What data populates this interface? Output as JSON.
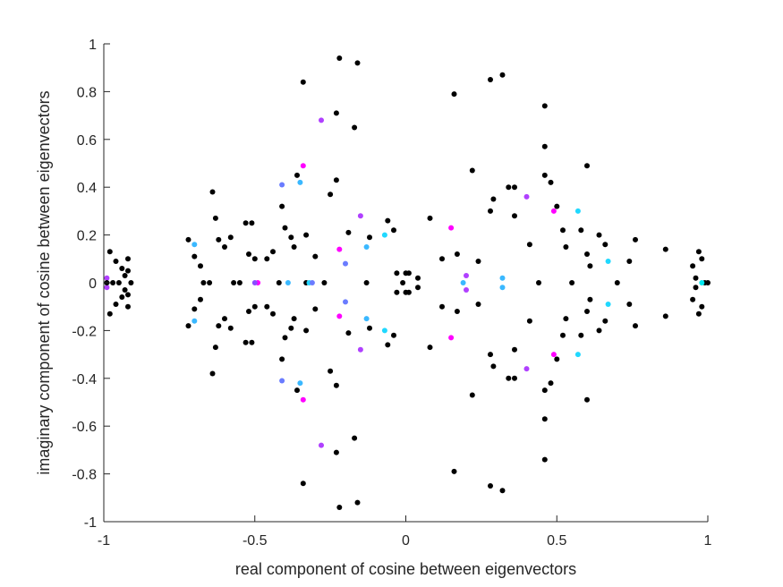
{
  "chart_data": {
    "type": "scatter",
    "title": "",
    "xlabel": "real component of cosine between eigenvectors",
    "ylabel": "imaginary component of cosine between eigenvectors",
    "xlim": [
      -1,
      1
    ],
    "ylim": [
      -1,
      1
    ],
    "xticks": [
      -1,
      -0.5,
      0,
      0.5,
      1
    ],
    "xtick_labels": [
      "-1",
      "-0.5",
      "0",
      "0.5",
      "1"
    ],
    "yticks": [
      -1,
      -0.8,
      -0.6,
      -0.4,
      -0.2,
      0,
      0.2,
      0.4,
      0.6,
      0.8,
      1
    ],
    "ytick_labels": [
      "-1",
      "-0.8",
      "-0.6",
      "-0.4",
      "-0.2",
      "0",
      "0.2",
      "0.4",
      "0.6",
      "0.8",
      "1"
    ],
    "grid": false,
    "legend": false,
    "colors": {
      "black": "#000000",
      "magenta": "#ff00ff",
      "violet": "#b040ff",
      "purple": "#8a4dff",
      "periwinkle": "#6a7cff",
      "blue": "#4aa0ff",
      "skyblue": "#3ab8ff",
      "cyan": "#20d8ff",
      "aqua": "#00e8f0"
    },
    "points_upper": [
      [
        -0.98,
        0.13,
        "black"
      ],
      [
        -0.96,
        0.09,
        "black"
      ],
      [
        -0.94,
        0.06,
        "black"
      ],
      [
        -0.92,
        0.05,
        "black"
      ],
      [
        -0.92,
        0.1,
        "black"
      ],
      [
        -0.91,
        0.0,
        "black"
      ],
      [
        -0.99,
        0.02,
        "violet"
      ],
      [
        -0.99,
        0.0,
        "black"
      ],
      [
        -0.97,
        0.0,
        "black"
      ],
      [
        -0.95,
        0.0,
        "black"
      ],
      [
        -0.93,
        0.03,
        "black"
      ],
      [
        -0.72,
        0.18,
        "black"
      ],
      [
        -0.7,
        0.16,
        "skyblue"
      ],
      [
        -0.7,
        0.11,
        "black"
      ],
      [
        -0.68,
        0.07,
        "black"
      ],
      [
        -0.67,
        0.0,
        "black"
      ],
      [
        -0.65,
        0.0,
        "black"
      ],
      [
        -0.64,
        0.38,
        "black"
      ],
      [
        -0.63,
        0.27,
        "black"
      ],
      [
        -0.62,
        0.18,
        "black"
      ],
      [
        -0.6,
        0.15,
        "black"
      ],
      [
        -0.58,
        0.19,
        "black"
      ],
      [
        -0.57,
        0.0,
        "black"
      ],
      [
        -0.55,
        0.0,
        "black"
      ],
      [
        -0.53,
        0.25,
        "black"
      ],
      [
        -0.52,
        0.12,
        "black"
      ],
      [
        -0.51,
        0.25,
        "black"
      ],
      [
        -0.5,
        0.1,
        "black"
      ],
      [
        -0.49,
        0.0,
        "magenta"
      ],
      [
        -0.5,
        0.0,
        "purple"
      ],
      [
        -0.46,
        0.1,
        "black"
      ],
      [
        -0.44,
        0.13,
        "black"
      ],
      [
        -0.42,
        0.0,
        "black"
      ],
      [
        -0.41,
        0.41,
        "periwinkle"
      ],
      [
        -0.41,
        0.32,
        "black"
      ],
      [
        -0.4,
        0.23,
        "black"
      ],
      [
        -0.39,
        0.0,
        "skyblue"
      ],
      [
        -0.38,
        0.19,
        "black"
      ],
      [
        -0.37,
        0.15,
        "black"
      ],
      [
        -0.36,
        0.45,
        "black"
      ],
      [
        -0.34,
        0.49,
        "magenta"
      ],
      [
        -0.35,
        0.42,
        "skyblue"
      ],
      [
        -0.34,
        0.84,
        "black"
      ],
      [
        -0.33,
        0.2,
        "black"
      ],
      [
        -0.33,
        0.0,
        "black"
      ],
      [
        -0.32,
        0.0,
        "cyan"
      ],
      [
        -0.31,
        0.0,
        "periwinkle"
      ],
      [
        -0.3,
        0.11,
        "black"
      ],
      [
        -0.28,
        0.68,
        "violet"
      ],
      [
        -0.27,
        0.0,
        "black"
      ],
      [
        -0.25,
        0.37,
        "black"
      ],
      [
        -0.23,
        0.71,
        "black"
      ],
      [
        -0.23,
        0.43,
        "black"
      ],
      [
        -0.22,
        0.94,
        "black"
      ],
      [
        -0.22,
        0.14,
        "magenta"
      ],
      [
        -0.2,
        0.08,
        "periwinkle"
      ],
      [
        -0.19,
        0.21,
        "black"
      ],
      [
        -0.17,
        0.65,
        "black"
      ],
      [
        -0.16,
        0.92,
        "black"
      ],
      [
        -0.15,
        0.28,
        "violet"
      ],
      [
        -0.13,
        0.15,
        "skyblue"
      ],
      [
        -0.13,
        0.0,
        "black"
      ],
      [
        -0.12,
        0.19,
        "black"
      ],
      [
        -0.07,
        0.2,
        "cyan"
      ],
      [
        -0.06,
        0.26,
        "black"
      ],
      [
        -0.04,
        0.22,
        "black"
      ],
      [
        -0.03,
        0.04,
        "black"
      ],
      [
        -0.01,
        0.0,
        "black"
      ],
      [
        0.0,
        0.04,
        "black"
      ],
      [
        0.01,
        0.04,
        "black"
      ],
      [
        0.04,
        0.02,
        "black"
      ],
      [
        0.08,
        0.27,
        "black"
      ],
      [
        0.12,
        0.1,
        "black"
      ],
      [
        0.15,
        0.23,
        "magenta"
      ],
      [
        0.16,
        0.79,
        "black"
      ],
      [
        0.17,
        0.12,
        "black"
      ],
      [
        0.19,
        0.0,
        "skyblue"
      ],
      [
        0.2,
        0.03,
        "violet"
      ],
      [
        0.22,
        0.47,
        "black"
      ],
      [
        0.24,
        0.09,
        "black"
      ],
      [
        0.28,
        0.85,
        "black"
      ],
      [
        0.28,
        0.3,
        "black"
      ],
      [
        0.29,
        0.35,
        "black"
      ],
      [
        0.32,
        0.87,
        "black"
      ],
      [
        0.32,
        0.02,
        "skyblue"
      ],
      [
        0.34,
        0.4,
        "black"
      ],
      [
        0.36,
        0.4,
        "black"
      ],
      [
        0.36,
        0.28,
        "black"
      ],
      [
        0.4,
        0.36,
        "violet"
      ],
      [
        0.41,
        0.16,
        "black"
      ],
      [
        0.44,
        0.0,
        "black"
      ],
      [
        0.46,
        0.74,
        "black"
      ],
      [
        0.46,
        0.57,
        "black"
      ],
      [
        0.46,
        0.45,
        "black"
      ],
      [
        0.48,
        0.42,
        "black"
      ],
      [
        0.49,
        0.3,
        "magenta"
      ],
      [
        0.5,
        0.32,
        "black"
      ],
      [
        0.52,
        0.22,
        "black"
      ],
      [
        0.53,
        0.15,
        "black"
      ],
      [
        0.55,
        0.0,
        "black"
      ],
      [
        0.57,
        0.3,
        "cyan"
      ],
      [
        0.58,
        0.22,
        "black"
      ],
      [
        0.6,
        0.49,
        "black"
      ],
      [
        0.6,
        0.12,
        "black"
      ],
      [
        0.61,
        0.07,
        "black"
      ],
      [
        0.64,
        0.2,
        "black"
      ],
      [
        0.66,
        0.16,
        "black"
      ],
      [
        0.67,
        0.09,
        "cyan"
      ],
      [
        0.7,
        0.0,
        "black"
      ],
      [
        0.74,
        0.09,
        "black"
      ],
      [
        0.76,
        0.18,
        "black"
      ],
      [
        0.86,
        0.14,
        "black"
      ],
      [
        0.95,
        0.07,
        "black"
      ],
      [
        0.96,
        0.02,
        "black"
      ],
      [
        0.97,
        0.13,
        "black"
      ],
      [
        0.98,
        0.1,
        "black"
      ],
      [
        0.99,
        0.0,
        "black"
      ],
      [
        0.98,
        0.0,
        "aqua"
      ],
      [
        1.0,
        0.0,
        "black"
      ]
    ]
  }
}
